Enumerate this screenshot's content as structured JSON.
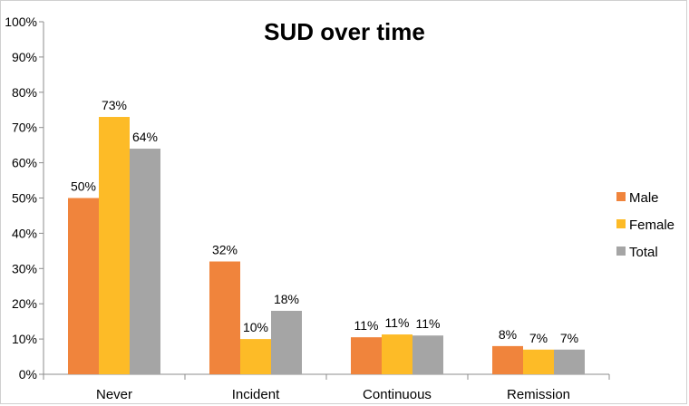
{
  "chart_data": {
    "type": "bar",
    "title": "SUD over time",
    "xlabel": "",
    "ylabel": "",
    "ylim": [
      0,
      100
    ],
    "yticks": [
      "0%",
      "10%",
      "20%",
      "30%",
      "40%",
      "50%",
      "60%",
      "70%",
      "80%",
      "90%",
      "100%"
    ],
    "categories": [
      "Never",
      "Incident",
      "Continuous",
      "Remission"
    ],
    "series": [
      {
        "name": "Male",
        "color": "#f0843c",
        "values": [
          50,
          32,
          10.5,
          8
        ],
        "labels": [
          "50%",
          "32%",
          "11%",
          "8%"
        ]
      },
      {
        "name": "Female",
        "color": "#fdbb27",
        "values": [
          73,
          10,
          11.3,
          7
        ],
        "labels": [
          "73%",
          "10%",
          "11%",
          "7%"
        ]
      },
      {
        "name": "Total",
        "color": "#a5a5a5",
        "values": [
          64,
          18,
          11,
          7
        ],
        "labels": [
          "64%",
          "18%",
          "11%",
          "7%"
        ]
      }
    ],
    "grid": false,
    "legend_position": "right"
  }
}
